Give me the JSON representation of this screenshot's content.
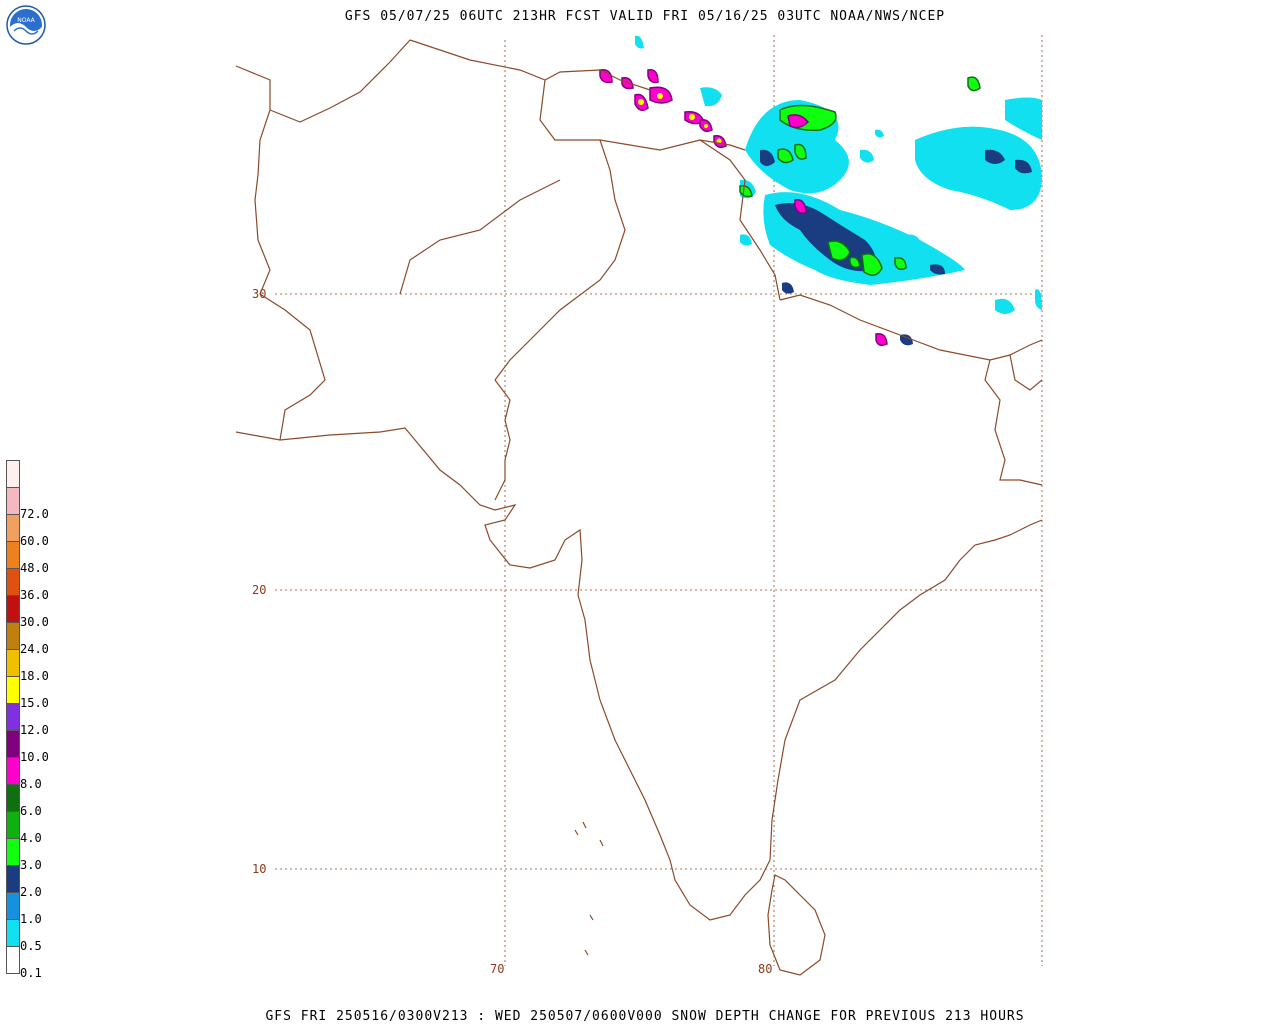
{
  "header": {
    "title": "GFS 05/07/25 06UTC 213HR FCST VALID FRI 05/16/25 03UTC NOAA/NWS/NCEP"
  },
  "footer": {
    "text": "GFS FRI 250516/0300V213 : WED 250507/0600V000 SNOW DEPTH CHANGE FOR PREVIOUS 213 HOURS"
  },
  "logo": {
    "text": "NOAA"
  },
  "grid_labels": {
    "lat_30": "30",
    "lat_20": "20",
    "lat_10": "10",
    "lon_70": "70",
    "lon_80": "80"
  },
  "legend": {
    "items": [
      {
        "label": "",
        "color": "#fff0f0"
      },
      {
        "label": "72.0",
        "color": "#f4b8c0"
      },
      {
        "label": "60.0",
        "color": "#f2a060"
      },
      {
        "label": "48.0",
        "color": "#ee8020"
      },
      {
        "label": "36.0",
        "color": "#e05010"
      },
      {
        "label": "30.0",
        "color": "#c01010"
      },
      {
        "label": "24.0",
        "color": "#c08010"
      },
      {
        "label": "18.0",
        "color": "#f0c000"
      },
      {
        "label": "15.0",
        "color": "#ffff00"
      },
      {
        "label": "12.0",
        "color": "#8030e0"
      },
      {
        "label": "10.0",
        "color": "#800080"
      },
      {
        "label": "8.0",
        "color": "#ff00cc"
      },
      {
        "label": "6.0",
        "color": "#107010"
      },
      {
        "label": "4.0",
        "color": "#10b010"
      },
      {
        "label": "3.0",
        "color": "#10ff10"
      },
      {
        "label": "2.0",
        "color": "#1a3c80"
      },
      {
        "label": "1.0",
        "color": "#1890e0"
      },
      {
        "label": "0.5",
        "color": "#10e0f0"
      },
      {
        "label": "0.1",
        "color": "#ffffff"
      }
    ]
  },
  "colors": {
    "border": "#8b4a2a",
    "grid": "#8b4a2a",
    "snow_light": "#10e0f0",
    "snow_mid": "#1a3c80",
    "snow_green": "#10ff10",
    "snow_magenta": "#ff00cc",
    "snow_yellow": "#ffff00"
  }
}
